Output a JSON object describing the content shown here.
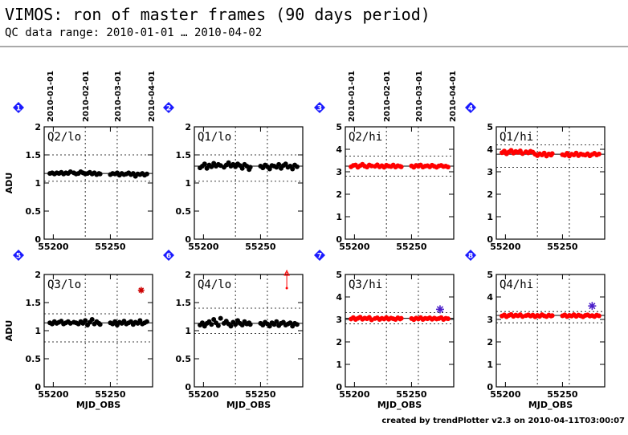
{
  "header": {
    "title": "VIMOS: ron of master frames (90 days period)",
    "subtitle": "QC data range: 2010-01-01 … 2010-04-02"
  },
  "footer": {
    "credit": "created by trendPlotter v2.3 on 2010-04-11T03:00:07"
  },
  "colors": {
    "black_points": "#000000",
    "red_points": "#ff0000",
    "badge": "#1a1aff",
    "outlier_star": "#4b1fc9",
    "outlier_red": "#cc0000"
  },
  "chart_data": [
    {
      "type": "scatter",
      "index": "1",
      "label": "Q2/lo",
      "color": "black",
      "ylabel": "ADU",
      "xlabel": "",
      "xlim": [
        55192,
        55287
      ],
      "ylim": [
        0,
        2
      ],
      "yticks": [
        0,
        0.5,
        1,
        1.5,
        2
      ],
      "xticks": [
        55200,
        55250
      ],
      "date_ticks": [
        "2010-01-01",
        "2010-02-01",
        "2010-03-01",
        "2010-04-01"
      ],
      "median": 1.17,
      "threshold_lines": [
        1.5,
        1.03
      ],
      "x": [
        55197,
        55199,
        55201,
        55203,
        55205,
        55207,
        55209,
        55211,
        55213,
        55215,
        55218,
        55220,
        55222,
        55224,
        55226,
        55228,
        55230,
        55232,
        55234,
        55236,
        55238,
        55240,
        55241,
        55250,
        55252,
        55254,
        55256,
        55258,
        55260,
        55262,
        55264,
        55266,
        55268,
        55270,
        55272,
        55274,
        55276,
        55278,
        55280,
        55282
      ],
      "y": [
        1.17,
        1.18,
        1.16,
        1.18,
        1.17,
        1.19,
        1.16,
        1.18,
        1.17,
        1.2,
        1.18,
        1.16,
        1.17,
        1.2,
        1.18,
        1.16,
        1.17,
        1.19,
        1.16,
        1.18,
        1.15,
        1.17,
        1.16,
        1.15,
        1.17,
        1.16,
        1.18,
        1.14,
        1.17,
        1.15,
        1.16,
        1.18,
        1.15,
        1.17,
        1.12,
        1.16,
        1.15,
        1.17,
        1.14,
        1.16
      ],
      "outliers": []
    },
    {
      "type": "scatter",
      "index": "2",
      "label": "Q1/lo",
      "color": "black",
      "ylabel": "",
      "xlabel": "",
      "xlim": [
        55192,
        55287
      ],
      "ylim": [
        0,
        2
      ],
      "yticks": [
        0,
        0.5,
        1,
        1.5,
        2
      ],
      "xticks": [
        55200,
        55250
      ],
      "date_ticks": [],
      "median": 1.3,
      "threshold_lines": [
        1.5,
        1.03
      ],
      "x": [
        55197,
        55199,
        55201,
        55203,
        55205,
        55207,
        55209,
        55211,
        55213,
        55215,
        55218,
        55220,
        55222,
        55224,
        55226,
        55228,
        55230,
        55232,
        55234,
        55236,
        55238,
        55240,
        55241,
        55250,
        55252,
        55254,
        55256,
        55258,
        55260,
        55262,
        55264,
        55266,
        55268,
        55270,
        55272,
        55274,
        55276,
        55278,
        55280,
        55282
      ],
      "y": [
        1.27,
        1.3,
        1.34,
        1.26,
        1.32,
        1.29,
        1.35,
        1.3,
        1.33,
        1.31,
        1.28,
        1.32,
        1.36,
        1.3,
        1.33,
        1.29,
        1.34,
        1.31,
        1.26,
        1.33,
        1.3,
        1.24,
        1.28,
        1.3,
        1.27,
        1.32,
        1.29,
        1.25,
        1.31,
        1.3,
        1.28,
        1.33,
        1.26,
        1.31,
        1.34,
        1.28,
        1.3,
        1.25,
        1.32,
        1.29
      ],
      "outliers": []
    },
    {
      "type": "scatter",
      "index": "3",
      "label": "Q2/hi",
      "color": "red",
      "ylabel": "",
      "xlabel": "",
      "xlim": [
        55192,
        55287
      ],
      "ylim": [
        0,
        5
      ],
      "yticks": [
        0,
        1,
        2,
        3,
        4,
        5
      ],
      "xticks": [
        55200,
        55250
      ],
      "date_ticks": [
        "2010-01-01",
        "2010-02-01",
        "2010-03-01",
        "2010-04-01"
      ],
      "median": 3.25,
      "threshold_lines": [
        3.7,
        2.8
      ],
      "x": [
        55197,
        55199,
        55201,
        55203,
        55205,
        55207,
        55209,
        55211,
        55213,
        55215,
        55218,
        55220,
        55222,
        55224,
        55226,
        55228,
        55230,
        55232,
        55234,
        55236,
        55238,
        55240,
        55241,
        55250,
        55252,
        55254,
        55256,
        55258,
        55260,
        55262,
        55264,
        55266,
        55268,
        55270,
        55272,
        55274,
        55276,
        55278,
        55280,
        55282
      ],
      "y": [
        3.22,
        3.28,
        3.3,
        3.2,
        3.27,
        3.33,
        3.25,
        3.21,
        3.3,
        3.26,
        3.24,
        3.31,
        3.22,
        3.27,
        3.2,
        3.29,
        3.25,
        3.23,
        3.3,
        3.21,
        3.27,
        3.24,
        3.22,
        3.26,
        3.2,
        3.28,
        3.24,
        3.3,
        3.21,
        3.25,
        3.27,
        3.22,
        3.29,
        3.24,
        3.2,
        3.26,
        3.28,
        3.23,
        3.25,
        3.21
      ],
      "outliers": []
    },
    {
      "type": "scatter",
      "index": "4",
      "label": "Q1/hi",
      "color": "red",
      "ylabel": "",
      "xlabel": "",
      "xlim": [
        55192,
        55287
      ],
      "ylim": [
        0,
        5
      ],
      "yticks": [
        0,
        1,
        2,
        3,
        4,
        5
      ],
      "xticks": [
        55200,
        55250
      ],
      "date_ticks": [],
      "median": 3.78,
      "threshold_lines": [
        4.2,
        3.2
      ],
      "x": [
        55197,
        55199,
        55201,
        55203,
        55205,
        55207,
        55209,
        55211,
        55213,
        55215,
        55218,
        55220,
        55222,
        55224,
        55226,
        55228,
        55230,
        55232,
        55234,
        55236,
        55238,
        55240,
        55241,
        55250,
        55252,
        55254,
        55256,
        55258,
        55260,
        55262,
        55264,
        55266,
        55268,
        55270,
        55272,
        55274,
        55276,
        55278,
        55280,
        55282
      ],
      "y": [
        3.85,
        3.92,
        3.8,
        3.88,
        3.95,
        3.83,
        3.9,
        3.86,
        3.93,
        3.81,
        3.89,
        3.84,
        3.91,
        3.87,
        3.78,
        3.72,
        3.8,
        3.75,
        3.83,
        3.7,
        3.79,
        3.74,
        3.81,
        3.76,
        3.73,
        3.82,
        3.7,
        3.78,
        3.75,
        3.83,
        3.72,
        3.79,
        3.76,
        3.74,
        3.8,
        3.71,
        3.77,
        3.82,
        3.75,
        3.79
      ],
      "outliers": []
    },
    {
      "type": "scatter",
      "index": "5",
      "label": "Q3/lo",
      "color": "black",
      "ylabel": "ADU",
      "xlabel": "MJD_OBS",
      "xlim": [
        55192,
        55287
      ],
      "ylim": [
        0,
        2
      ],
      "yticks": [
        0,
        0.5,
        1,
        1.5,
        2
      ],
      "xticks": [
        55200,
        55250
      ],
      "date_ticks": [],
      "median": 1.14,
      "threshold_lines": [
        1.3,
        0.8
      ],
      "x": [
        55197,
        55199,
        55201,
        55203,
        55205,
        55207,
        55209,
        55211,
        55213,
        55215,
        55218,
        55220,
        55222,
        55224,
        55226,
        55228,
        55230,
        55232,
        55234,
        55236,
        55238,
        55240,
        55241,
        55250,
        55252,
        55254,
        55256,
        55258,
        55260,
        55262,
        55264,
        55266,
        55268,
        55270,
        55272,
        55274,
        55276,
        55278,
        55280,
        55282
      ],
      "y": [
        1.14,
        1.12,
        1.16,
        1.13,
        1.15,
        1.17,
        1.12,
        1.14,
        1.16,
        1.13,
        1.15,
        1.14,
        1.12,
        1.16,
        1.13,
        1.18,
        1.1,
        1.15,
        1.2,
        1.12,
        1.16,
        1.13,
        1.11,
        1.14,
        1.12,
        1.16,
        1.1,
        1.15,
        1.13,
        1.17,
        1.12,
        1.14,
        1.16,
        1.11,
        1.15,
        1.13,
        1.18,
        1.12,
        1.14,
        1.16
      ],
      "outliers": [
        {
          "x": 55277,
          "y": 1.72,
          "style": "red-star"
        }
      ]
    },
    {
      "type": "scatter",
      "index": "6",
      "label": "Q4/lo",
      "color": "black",
      "ylabel": "",
      "xlabel": "MJD_OBS",
      "xlim": [
        55192,
        55287
      ],
      "ylim": [
        0,
        2
      ],
      "yticks": [
        0,
        0.5,
        1,
        1.5,
        2
      ],
      "xticks": [
        55200,
        55250
      ],
      "date_ticks": [],
      "median": 1.13,
      "threshold_lines": [
        1.4,
        0.95
      ],
      "x": [
        55197,
        55199,
        55201,
        55203,
        55205,
        55207,
        55209,
        55211,
        55213,
        55215,
        55218,
        55220,
        55222,
        55224,
        55226,
        55228,
        55230,
        55232,
        55234,
        55236,
        55238,
        55240,
        55241,
        55250,
        55252,
        55254,
        55256,
        55258,
        55260,
        55262,
        55264,
        55266,
        55268,
        55270,
        55272,
        55274,
        55276,
        55278,
        55280,
        55282
      ],
      "y": [
        1.1,
        1.14,
        1.08,
        1.13,
        1.16,
        1.11,
        1.2,
        1.14,
        1.09,
        1.22,
        1.13,
        1.17,
        1.12,
        1.08,
        1.15,
        1.11,
        1.18,
        1.13,
        1.1,
        1.16,
        1.12,
        1.14,
        1.11,
        1.13,
        1.1,
        1.15,
        1.12,
        1.08,
        1.14,
        1.11,
        1.16,
        1.09,
        1.13,
        1.15,
        1.1,
        1.12,
        1.14,
        1.08,
        1.13,
        1.11
      ],
      "outliers": [
        {
          "x": 55273,
          "y": 1.9,
          "style": "red-arrow-up"
        }
      ]
    },
    {
      "type": "scatter",
      "index": "7",
      "label": "Q3/hi",
      "color": "red",
      "ylabel": "",
      "xlabel": "MJD_OBS",
      "xlim": [
        55192,
        55287
      ],
      "ylim": [
        0,
        5
      ],
      "yticks": [
        0,
        1,
        2,
        3,
        4,
        5
      ],
      "xticks": [
        55200,
        55250
      ],
      "date_ticks": [],
      "median": 3.05,
      "threshold_lines": [
        3.3,
        2.8
      ],
      "x": [
        55197,
        55199,
        55201,
        55203,
        55205,
        55207,
        55209,
        55211,
        55213,
        55215,
        55218,
        55220,
        55222,
        55224,
        55226,
        55228,
        55230,
        55232,
        55234,
        55236,
        55238,
        55240,
        55241,
        55250,
        55252,
        55254,
        55256,
        55258,
        55260,
        55262,
        55264,
        55266,
        55268,
        55270,
        55272,
        55274,
        55276,
        55278,
        55280,
        55282
      ],
      "y": [
        3.02,
        3.08,
        3.0,
        3.05,
        3.1,
        3.01,
        3.06,
        3.03,
        3.09,
        2.98,
        3.04,
        3.07,
        3.0,
        3.05,
        3.02,
        3.08,
        3.01,
        3.06,
        3.03,
        3.0,
        3.07,
        3.02,
        3.05,
        3.04,
        2.99,
        3.06,
        3.02,
        3.08,
        3.0,
        3.05,
        3.03,
        3.07,
        3.01,
        3.06,
        3.02,
        3.04,
        3.08,
        3.0,
        3.05,
        3.03
      ],
      "outliers": [
        {
          "x": 55275,
          "y": 3.45,
          "style": "blue-star"
        }
      ]
    },
    {
      "type": "scatter",
      "index": "8",
      "label": "Q4/hi",
      "color": "red",
      "ylabel": "",
      "xlabel": "MJD_OBS",
      "xlim": [
        55192,
        55287
      ],
      "ylim": [
        0,
        5
      ],
      "yticks": [
        0,
        1,
        2,
        3,
        4,
        5
      ],
      "xticks": [
        55200,
        55250
      ],
      "date_ticks": [],
      "median": 3.18,
      "threshold_lines": [
        3.35,
        2.85
      ],
      "x": [
        55197,
        55199,
        55201,
        55203,
        55205,
        55207,
        55209,
        55211,
        55213,
        55215,
        55218,
        55220,
        55222,
        55224,
        55226,
        55228,
        55230,
        55232,
        55234,
        55236,
        55238,
        55240,
        55241,
        55250,
        55252,
        55254,
        55256,
        55258,
        55260,
        55262,
        55264,
        55266,
        55268,
        55270,
        55272,
        55274,
        55276,
        55278,
        55280,
        55282
      ],
      "y": [
        3.15,
        3.2,
        3.12,
        3.18,
        3.22,
        3.14,
        3.19,
        3.16,
        3.21,
        3.13,
        3.17,
        3.2,
        3.15,
        3.19,
        3.12,
        3.18,
        3.14,
        3.21,
        3.16,
        3.13,
        3.19,
        3.15,
        3.17,
        3.16,
        3.2,
        3.13,
        3.18,
        3.15,
        3.21,
        3.14,
        3.19,
        3.16,
        3.12,
        3.18,
        3.2,
        3.15,
        3.17,
        3.13,
        3.19,
        3.16
      ],
      "outliers": [
        {
          "x": 55276,
          "y": 3.6,
          "style": "blue-star"
        }
      ]
    }
  ]
}
